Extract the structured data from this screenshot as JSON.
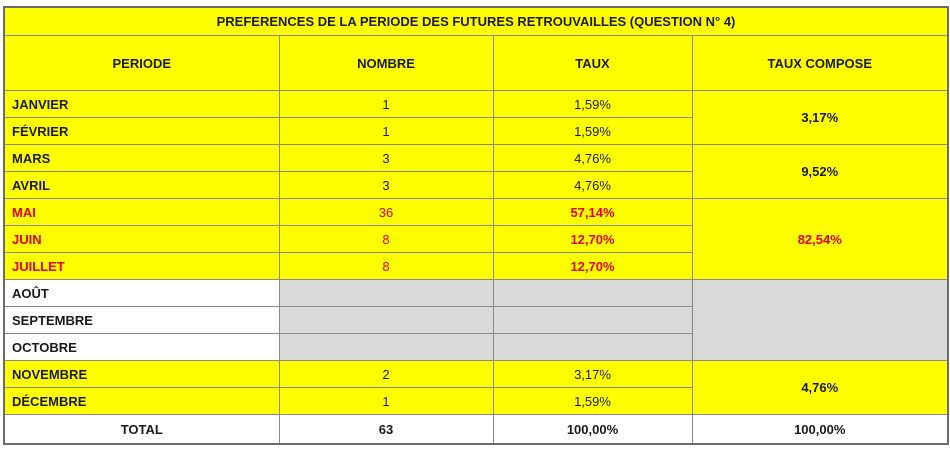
{
  "title": "PREFERENCES DE LA PERIODE DES FUTURES RETROUVAILLES (QUESTION N° 4)",
  "headers": {
    "periode": "PERIODE",
    "nombre": "NOMBRE",
    "taux": "TAUX",
    "taux_compose": "TAUX COMPOSE"
  },
  "rows": [
    {
      "periode": "JANVIER",
      "nombre": "1",
      "taux": "1,59%"
    },
    {
      "periode": "FÉVRIER",
      "nombre": "1",
      "taux": "1,59%"
    },
    {
      "periode": "MARS",
      "nombre": "3",
      "taux": "4,76%"
    },
    {
      "periode": "AVRIL",
      "nombre": "3",
      "taux": "4,76%"
    },
    {
      "periode": "MAI",
      "nombre": "36",
      "taux": "57,14%"
    },
    {
      "periode": "JUIN",
      "nombre": "8",
      "taux": "12,70%"
    },
    {
      "periode": "JUILLET",
      "nombre": "8",
      "taux": "12,70%"
    },
    {
      "periode": "AOÛT",
      "nombre": "",
      "taux": ""
    },
    {
      "periode": "SEPTEMBRE",
      "nombre": "",
      "taux": ""
    },
    {
      "periode": "OCTOBRE",
      "nombre": "",
      "taux": ""
    },
    {
      "periode": "NOVEMBRE",
      "nombre": "2",
      "taux": "3,17%"
    },
    {
      "periode": "DÉCEMBRE",
      "nombre": "1",
      "taux": "1,59%"
    }
  ],
  "composite": {
    "jan_feb": "3,17%",
    "mar_apr": "9,52%",
    "may_jul": "82,54%",
    "aug_oct": "",
    "nov_dec": "4,76%"
  },
  "total": {
    "label": "TOTAL",
    "nombre": "63",
    "taux": "100,00%",
    "taux_compose": "100,00%"
  },
  "colors": {
    "highlight": "#ffff00",
    "empty": "#d9d9d9",
    "emphasis_text": "#e60000"
  }
}
